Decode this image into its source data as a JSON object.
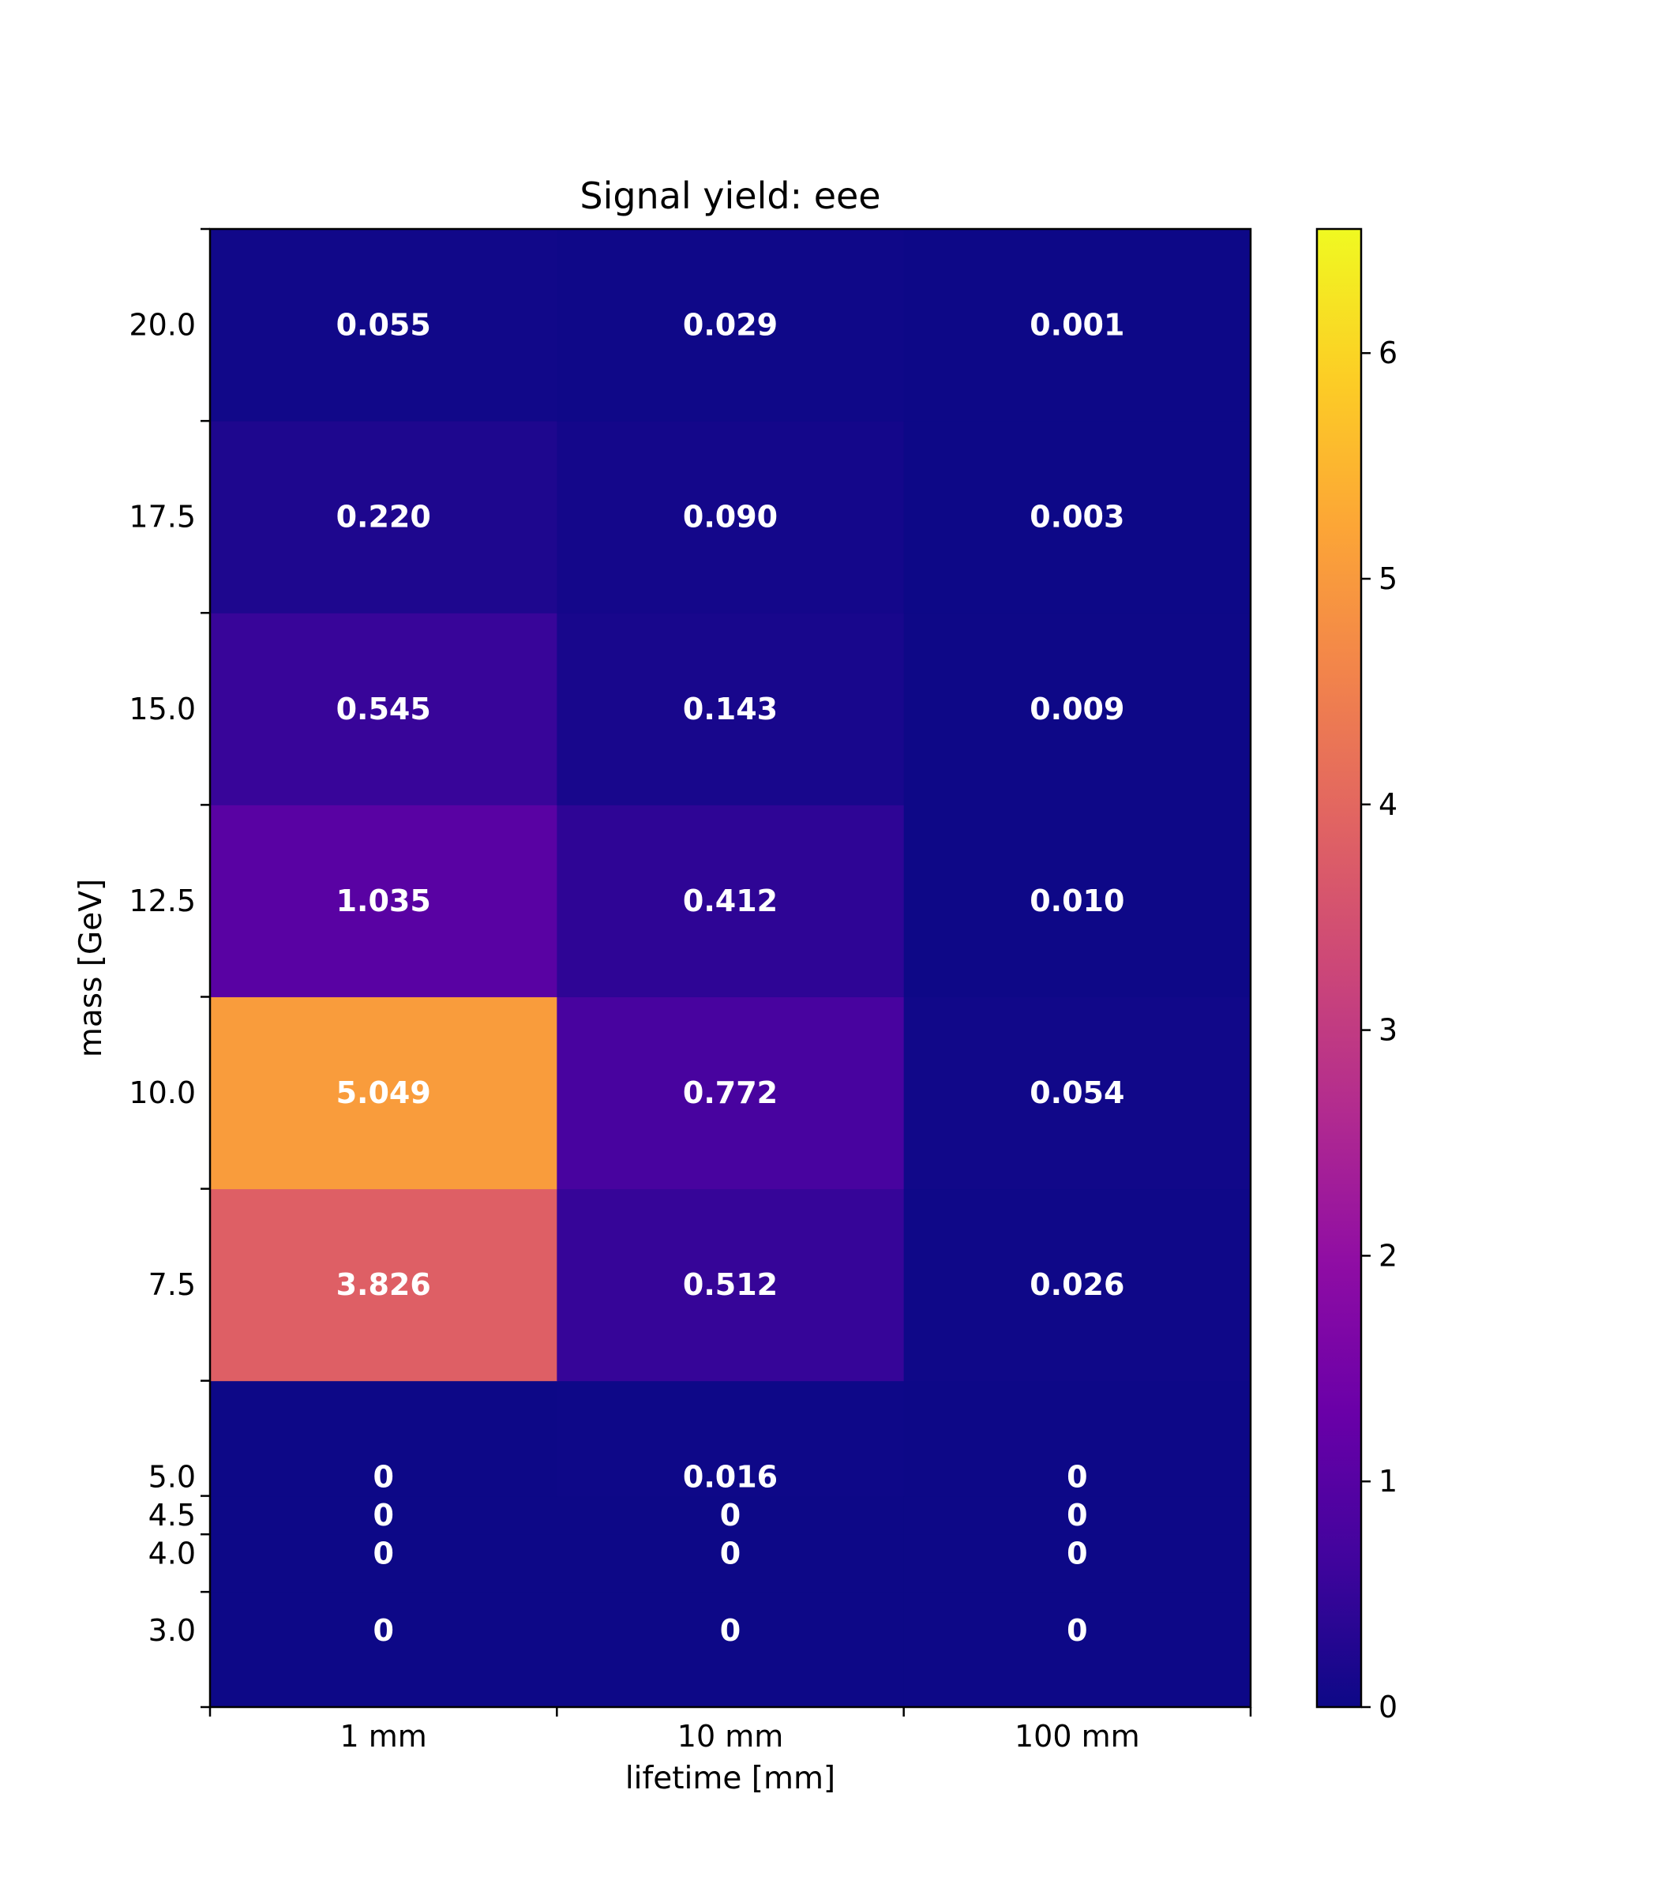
{
  "chart_data": {
    "type": "heatmap",
    "title": "Signal yield: eee",
    "xlabel": "lifetime [mm]",
    "ylabel": "mass [GeV]",
    "x_categories": [
      "1 mm",
      "10 mm",
      "100 mm"
    ],
    "y_bin_edges": [
      2.0,
      3.5,
      4.25,
      4.75,
      6.25,
      8.75,
      11.25,
      13.75,
      16.25,
      18.75,
      21.25
    ],
    "y_tick_values": [
      3.0,
      4.0,
      4.5,
      5.0,
      7.5,
      10.0,
      12.5,
      15.0,
      17.5,
      20.0
    ],
    "y_tick_labels": [
      "3.0",
      "4.0",
      "4.5",
      "5.0",
      "7.5",
      "10.0",
      "12.5",
      "15.0",
      "17.5",
      "20.0"
    ],
    "rows": [
      {
        "mass": 3.0,
        "values": [
          0,
          0,
          0
        ],
        "labels": [
          "0",
          "0",
          "0"
        ]
      },
      {
        "mass": 4.0,
        "values": [
          0,
          0,
          0
        ],
        "labels": [
          "0",
          "0",
          "0"
        ]
      },
      {
        "mass": 4.5,
        "values": [
          0,
          0,
          0
        ],
        "labels": [
          "0",
          "0",
          "0"
        ]
      },
      {
        "mass": 5.0,
        "values": [
          0,
          0.016,
          0
        ],
        "labels": [
          "0",
          "0.016",
          "0"
        ]
      },
      {
        "mass": 7.5,
        "values": [
          3.826,
          0.512,
          0.026
        ],
        "labels": [
          "3.826",
          "0.512",
          "0.026"
        ]
      },
      {
        "mass": 10.0,
        "values": [
          5.049,
          0.772,
          0.054
        ],
        "labels": [
          "5.049",
          "0.772",
          "0.054"
        ]
      },
      {
        "mass": 12.5,
        "values": [
          1.035,
          0.412,
          0.01
        ],
        "labels": [
          "1.035",
          "0.412",
          "0.010"
        ]
      },
      {
        "mass": 15.0,
        "values": [
          0.545,
          0.143,
          0.009
        ],
        "labels": [
          "0.545",
          "0.143",
          "0.009"
        ]
      },
      {
        "mass": 17.5,
        "values": [
          0.22,
          0.09,
          0.003
        ],
        "labels": [
          "0.220",
          "0.090",
          "0.003"
        ]
      },
      {
        "mass": 20.0,
        "values": [
          0.055,
          0.029,
          0.001
        ],
        "labels": [
          "0.055",
          "0.029",
          "0.001"
        ]
      }
    ],
    "colorbar": {
      "colormap": "plasma",
      "range": [
        0,
        6.55
      ],
      "ticks": [
        0,
        1,
        2,
        3,
        4,
        5,
        6
      ],
      "tick_labels": [
        "0",
        "1",
        "2",
        "3",
        "4",
        "5",
        "6"
      ]
    },
    "grid": false
  }
}
